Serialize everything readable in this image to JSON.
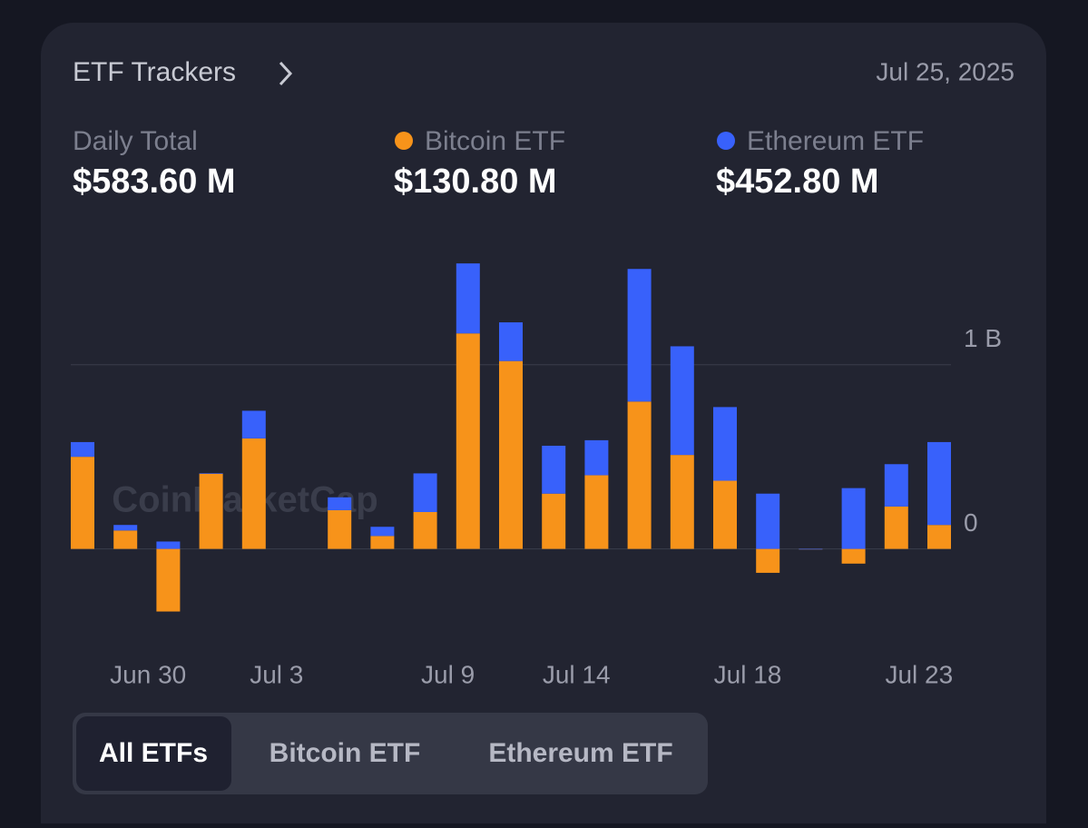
{
  "header": {
    "title": "ETF Trackers",
    "date": "Jul 25, 2025"
  },
  "summary": [
    {
      "label": "Daily Total",
      "value": "$583.60 M"
    },
    {
      "label": "Bitcoin ETF",
      "value": "$130.80 M"
    },
    {
      "label": "Ethereum ETF",
      "value": "$452.80 M"
    }
  ],
  "chart_data": {
    "type": "stacked_bar",
    "watermark": "CoinMarketCap",
    "categories": [
      null,
      "Jun 30",
      null,
      null,
      "Jul 3",
      null,
      null,
      null,
      "Jul 9",
      null,
      null,
      "Jul 14",
      null,
      null,
      null,
      "Jul 18",
      null,
      null,
      null,
      "Jul 23",
      null
    ],
    "series": [
      {
        "name": "Bitcoin ETF",
        "color": "#f7931a",
        "values": [
          0.5,
          0.1,
          -0.34,
          0.41,
          0.6,
          null,
          0.21,
          0.07,
          0.2,
          1.17,
          1.02,
          0.3,
          0.4,
          0.8,
          0.51,
          0.37,
          -0.13,
          0,
          -0.08,
          0.23,
          0.13
        ]
      },
      {
        "name": "Ethereum ETF",
        "color": "#3861fb",
        "values": [
          0.08,
          0.03,
          0.04,
          0,
          0.15,
          null,
          0.07,
          0.05,
          0.21,
          0.38,
          0.21,
          0.26,
          0.19,
          0.72,
          0.59,
          0.4,
          0.3,
          0,
          0.33,
          0.23,
          0.45
        ]
      }
    ],
    "ylim": [
      -0.5,
      1.6
    ],
    "yticks": [
      0,
      {
        "value": 1,
        "label": "1 B"
      }
    ],
    "grid": true
  },
  "tabs": [
    "All ETFs",
    "Bitcoin ETF",
    "Ethereum ETF"
  ]
}
